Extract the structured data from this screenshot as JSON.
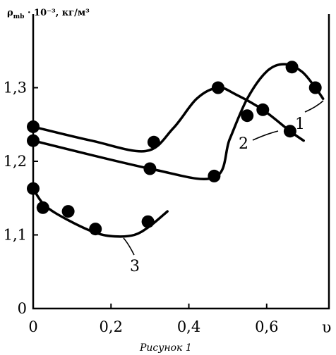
{
  "chart_data": {
    "type": "line",
    "title": "",
    "ylabel": "ρ",
    "ylabel_subscript": "mb",
    "ylabel_rest": " · 10⁻³, кг/м³",
    "xlabel": "υ",
    "caption": "Рисунок 1",
    "xlim": [
      0,
      0.76
    ],
    "ylim": [
      1.0,
      1.4
    ],
    "x_ticks": [
      {
        "value": 0,
        "label": "0"
      },
      {
        "value": 0.2,
        "label": "0,2"
      },
      {
        "value": 0.4,
        "label": "0,4"
      },
      {
        "value": 0.6,
        "label": "0,6"
      }
    ],
    "y_ticks": [
      {
        "value": 1.0,
        "label": "0"
      },
      {
        "value": 1.1,
        "label": "1,1"
      },
      {
        "value": 1.2,
        "label": "1,2"
      },
      {
        "value": 1.3,
        "label": "1,3"
      }
    ],
    "grid": false,
    "series": [
      {
        "name": "1",
        "points": [
          [
            0,
            1.228
          ],
          [
            0.3,
            1.19
          ],
          [
            0.465,
            1.18
          ],
          [
            0.55,
            1.262
          ],
          [
            0.665,
            1.328
          ],
          [
            0.725,
            1.3
          ]
        ],
        "curve": [
          [
            0,
            1.228
          ],
          [
            0.3,
            1.19
          ],
          [
            0.465,
            1.178
          ],
          [
            0.505,
            1.23
          ],
          [
            0.55,
            1.285
          ],
          [
            0.6,
            1.322
          ],
          [
            0.645,
            1.332
          ],
          [
            0.69,
            1.322
          ],
          [
            0.725,
            1.3
          ],
          [
            0.745,
            1.285
          ]
        ]
      },
      {
        "name": "2",
        "points": [
          [
            0,
            1.247
          ],
          [
            0.31,
            1.226
          ],
          [
            0.475,
            1.3
          ],
          [
            0.59,
            1.27
          ],
          [
            0.66,
            1.241
          ]
        ],
        "curve": [
          [
            0,
            1.247
          ],
          [
            0.15,
            1.228
          ],
          [
            0.29,
            1.214
          ],
          [
            0.36,
            1.245
          ],
          [
            0.42,
            1.285
          ],
          [
            0.475,
            1.3
          ],
          [
            0.52,
            1.291
          ],
          [
            0.59,
            1.27
          ],
          [
            0.66,
            1.241
          ],
          [
            0.695,
            1.228
          ]
        ]
      },
      {
        "name": "3",
        "points": [
          [
            0,
            1.163
          ],
          [
            0.025,
            1.137
          ],
          [
            0.09,
            1.132
          ],
          [
            0.16,
            1.108
          ],
          [
            0.295,
            1.118
          ]
        ],
        "curve": [
          [
            0,
            1.163
          ],
          [
            0.03,
            1.14
          ],
          [
            0.09,
            1.12
          ],
          [
            0.16,
            1.103
          ],
          [
            0.21,
            1.098
          ],
          [
            0.26,
            1.1
          ],
          [
            0.3,
            1.112
          ],
          [
            0.345,
            1.132
          ]
        ]
      }
    ]
  }
}
